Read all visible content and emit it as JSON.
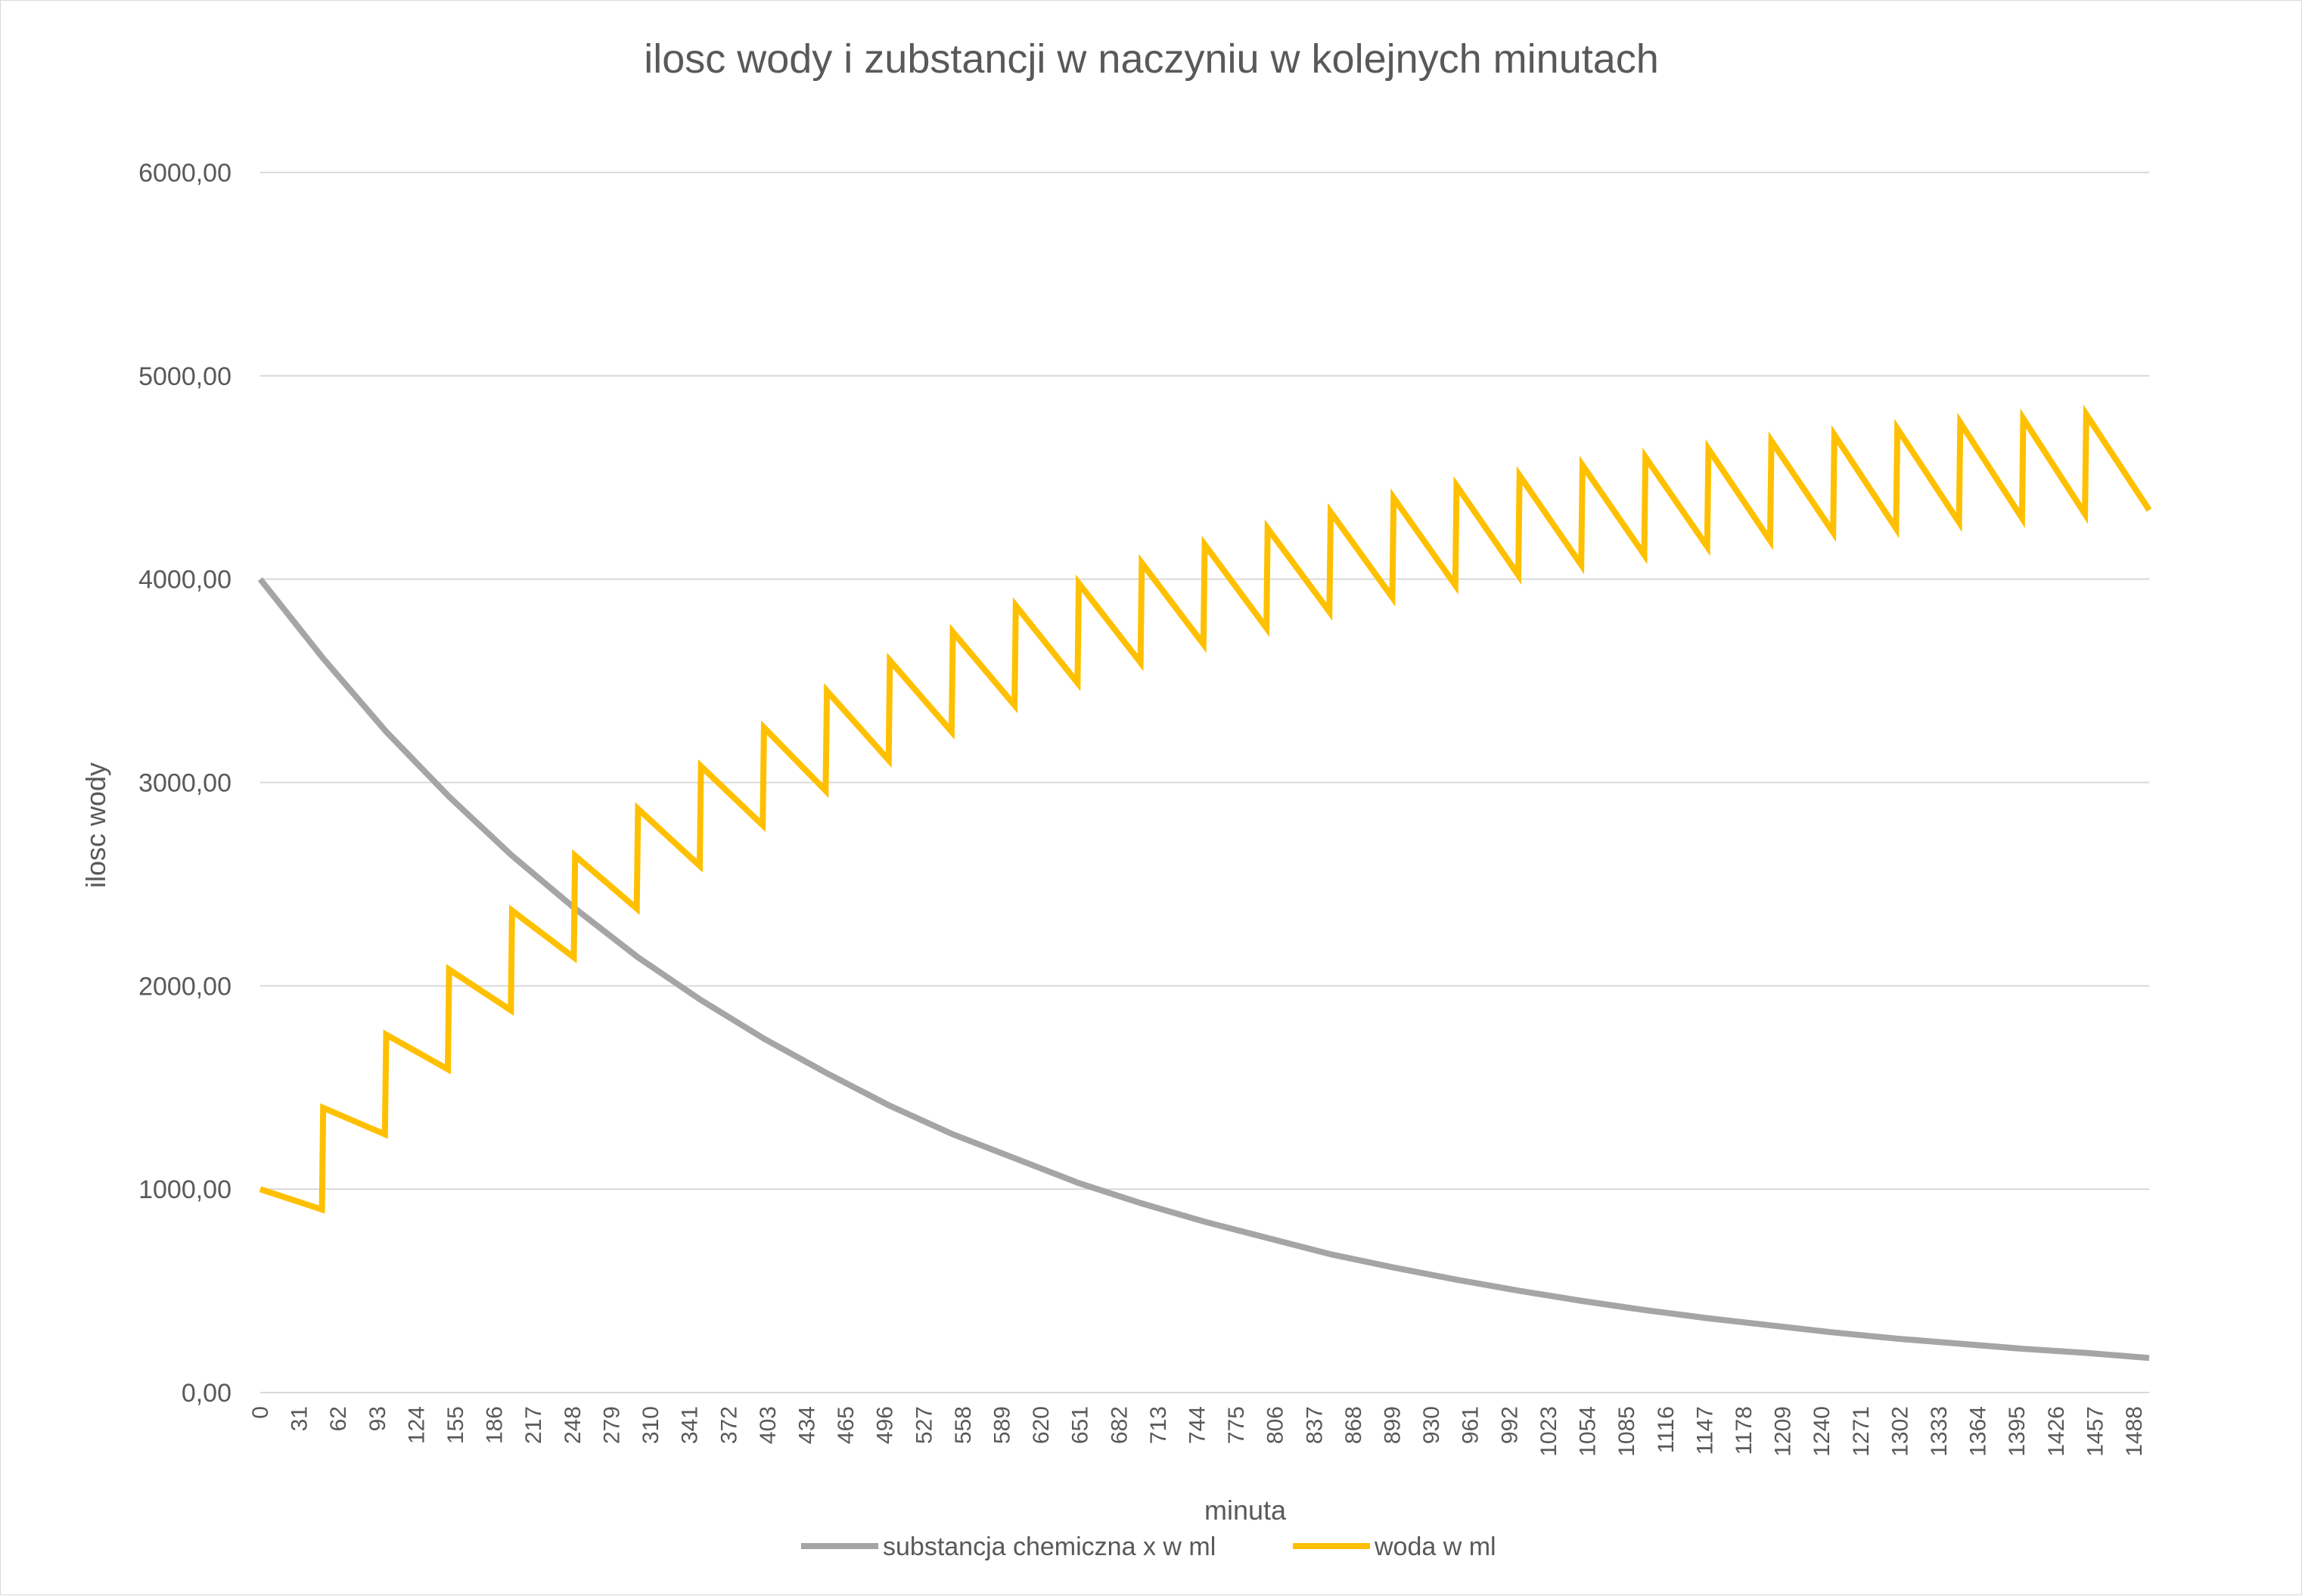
{
  "chart_data": {
    "type": "line",
    "title": "ilosc wody i zubstancji w naczyniu w kolejnych minutach",
    "xlabel": "minuta",
    "ylabel": "ilosc wody",
    "xlim": [
      0,
      1500
    ],
    "ylim": [
      0,
      6000
    ],
    "y_ticks": [
      "0,00",
      "1000,00",
      "2000,00",
      "3000,00",
      "4000,00",
      "5000,00",
      "6000,00"
    ],
    "x_ticks": [
      0,
      31,
      62,
      93,
      124,
      155,
      186,
      217,
      248,
      279,
      310,
      341,
      372,
      403,
      434,
      465,
      496,
      527,
      558,
      589,
      620,
      651,
      682,
      713,
      744,
      775,
      806,
      837,
      868,
      899,
      930,
      961,
      992,
      1023,
      1054,
      1085,
      1116,
      1147,
      1178,
      1209,
      1240,
      1271,
      1302,
      1333,
      1364,
      1395,
      1426,
      1457,
      1488
    ],
    "grid": true,
    "legend_position": "bottom",
    "series": [
      {
        "name": "substancja chemiczna x w ml",
        "color": "#a5a5a5",
        "x": [
          0,
          50,
          100,
          150,
          200,
          250,
          300,
          350,
          400,
          450,
          500,
          550,
          600,
          650,
          700,
          750,
          800,
          850,
          900,
          950,
          1000,
          1050,
          1100,
          1150,
          1200,
          1250,
          1300,
          1350,
          1400,
          1450,
          1500
        ],
        "y": [
          4000,
          3610,
          3250,
          2930,
          2640,
          2380,
          2140,
          1930,
          1740,
          1570,
          1410,
          1270,
          1150,
          1030,
          930,
          840,
          760,
          680,
          615,
          555,
          500,
          450,
          405,
          365,
          330,
          295,
          265,
          240,
          215,
          195,
          170
        ]
      },
      {
        "name": "woda w ml",
        "color": "#ffc000",
        "x": [
          0,
          49,
          50,
          99,
          100,
          149,
          150,
          199,
          200,
          249,
          250,
          299,
          300,
          349,
          350,
          399,
          400,
          449,
          450,
          499,
          500,
          549,
          550,
          599,
          600,
          649,
          650,
          699,
          700,
          749,
          750,
          799,
          800,
          849,
          850,
          899,
          900,
          949,
          950,
          999,
          1000,
          1049,
          1050,
          1099,
          1100,
          1149,
          1150,
          1199,
          1200,
          1249,
          1250,
          1299,
          1300,
          1349,
          1350,
          1399,
          1400,
          1449,
          1450,
          1500
        ],
        "y": [
          1000,
          900,
          1400,
          1270,
          1760,
          1590,
          2080,
          1880,
          2370,
          2140,
          2640,
          2380,
          2870,
          2590,
          3080,
          2790,
          3270,
          2960,
          3450,
          3110,
          3600,
          3250,
          3740,
          3380,
          3870,
          3490,
          3980,
          3590,
          4080,
          3680,
          4170,
          3760,
          4250,
          3840,
          4330,
          3910,
          4400,
          3970,
          4460,
          4020,
          4510,
          4070,
          4560,
          4120,
          4600,
          4160,
          4640,
          4190,
          4680,
          4230,
          4710,
          4250,
          4740,
          4280,
          4770,
          4300,
          4790,
          4320,
          4810,
          4340
        ]
      }
    ]
  }
}
